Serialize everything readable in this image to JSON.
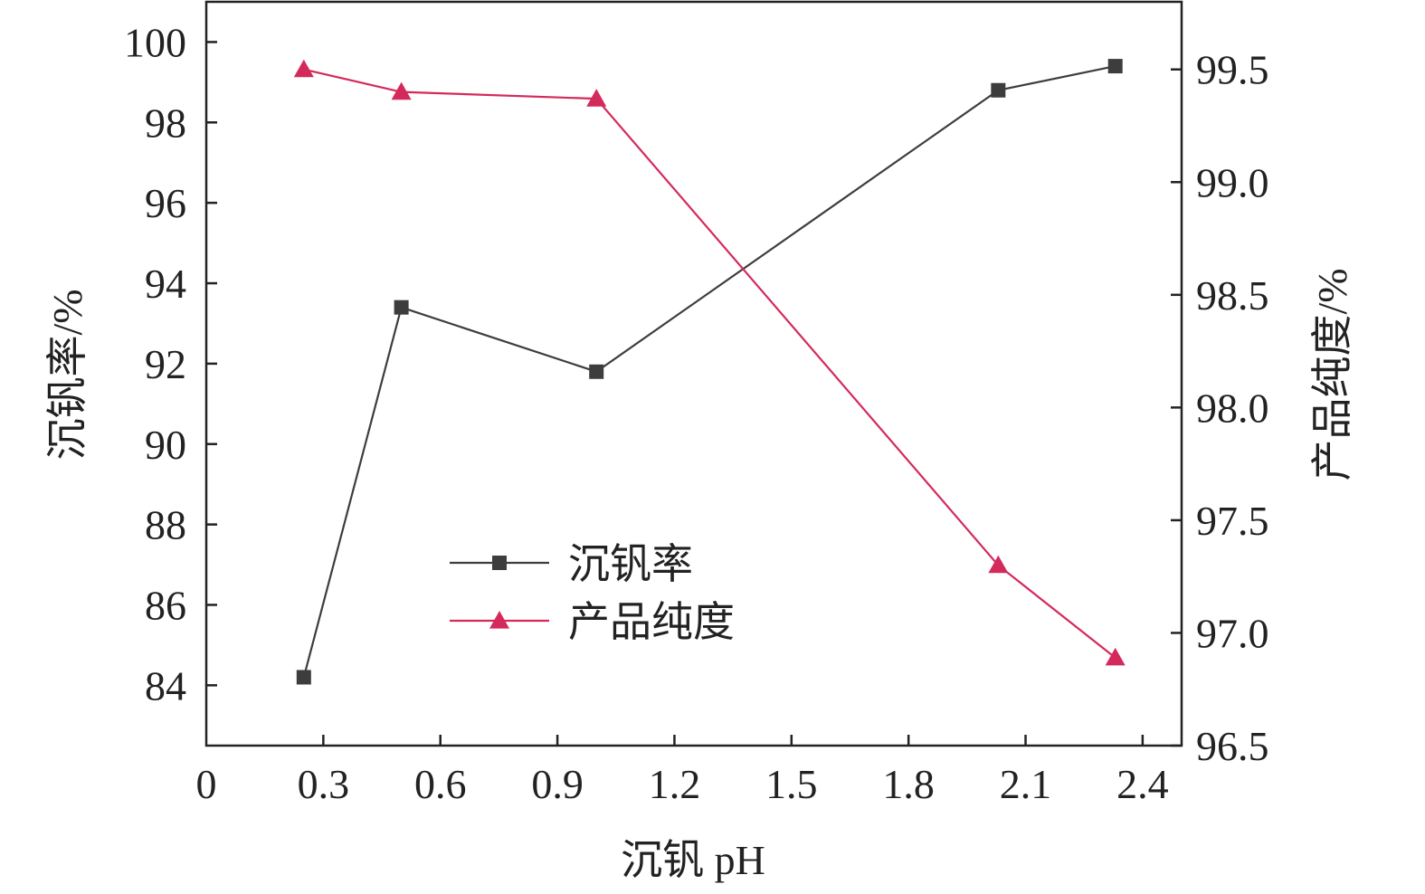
{
  "chart_data": {
    "type": "line",
    "xlabel": "沉钒 pH",
    "ylabel_left": "沉钒率/%",
    "ylabel_right": "产品纯度/%",
    "xlim": [
      0,
      2.5
    ],
    "ylim_left": [
      82.5,
      101
    ],
    "ylim_right": [
      96.5,
      99.8
    ],
    "x_ticks": [
      0,
      0.3,
      0.6,
      0.9,
      1.2,
      1.5,
      1.8,
      2.1,
      2.4
    ],
    "x_tick_labels": [
      "0",
      "0.3",
      "0.6",
      "0.9",
      "1.2",
      "1.5",
      "1.8",
      "2.1",
      "2.4"
    ],
    "y_left_ticks": [
      84,
      86,
      88,
      90,
      92,
      94,
      96,
      98,
      100
    ],
    "y_left_tick_labels": [
      "84",
      "86",
      "88",
      "90",
      "92",
      "94",
      "96",
      "98",
      "100"
    ],
    "y_right_ticks": [
      96.5,
      97.0,
      97.5,
      98.0,
      98.5,
      99.0,
      99.5
    ],
    "y_right_tick_labels": [
      "96.5",
      "97.0",
      "97.5",
      "98.0",
      "98.5",
      "99.0",
      "99.5"
    ],
    "grid": false,
    "legend_position": "center-left",
    "series": [
      {
        "name": "沉钒率",
        "axis": "left",
        "marker": "square",
        "color": "#3d3d3d",
        "x": [
          0.25,
          0.5,
          1.0,
          2.03,
          2.33
        ],
        "y": [
          84.2,
          93.4,
          91.8,
          98.8,
          99.4
        ]
      },
      {
        "name": "产品纯度",
        "axis": "right",
        "marker": "triangle",
        "color": "#d42a5b",
        "x": [
          0.25,
          0.5,
          1.0,
          2.03,
          2.33
        ],
        "y": [
          99.5,
          99.4,
          99.37,
          97.3,
          96.89
        ]
      }
    ]
  }
}
